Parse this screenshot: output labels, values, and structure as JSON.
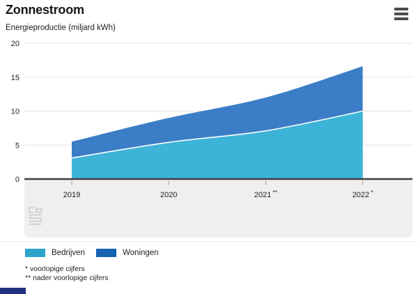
{
  "header": {
    "title": "Zonnestroom",
    "subtitle": "Energieproductie (miljard kWh)"
  },
  "icons": {
    "menu": "hamburger-menu-icon",
    "watermark": "cbs-logo-icon"
  },
  "chart_data": {
    "type": "area",
    "stacked": true,
    "title": "Zonnestroom",
    "ylabel": "Energieproductie (miljard kWh)",
    "categories": [
      "2019",
      "2020",
      "2021 **",
      "2022 *"
    ],
    "series": [
      {
        "name": "Bedrijven",
        "color": "#2da4c9",
        "area_color": "#3db4d7",
        "values": [
          3.1,
          5.4,
          7.1,
          10.0
        ]
      },
      {
        "name": "Woningen",
        "color": "#1562b2",
        "area_color": "#3b7dc6",
        "values": [
          2.4,
          3.6,
          4.9,
          6.6
        ]
      }
    ],
    "totals": [
      5.5,
      9.0,
      12.0,
      16.6
    ],
    "ylim": [
      0,
      20
    ],
    "yticks": [
      0,
      5,
      10,
      15,
      20
    ],
    "grid": true,
    "legend_position": "bottom"
  },
  "legend": {
    "items": [
      {
        "label": "Bedrijven",
        "color": "#2da4c9"
      },
      {
        "label": "Woningen",
        "color": "#1562b2"
      }
    ]
  },
  "footnotes": [
    "* voorlopige cijfers",
    "** nader voorlopige cijfers"
  ],
  "colors": {
    "grid_line": "#e3e3e3",
    "axis_line": "#3f3f3f",
    "axis_band": "#efefef",
    "tick": "#9b9b9b",
    "text": "#1d1d1d",
    "accent_bar": "#22307e",
    "boundary_line": "#ffffff"
  }
}
